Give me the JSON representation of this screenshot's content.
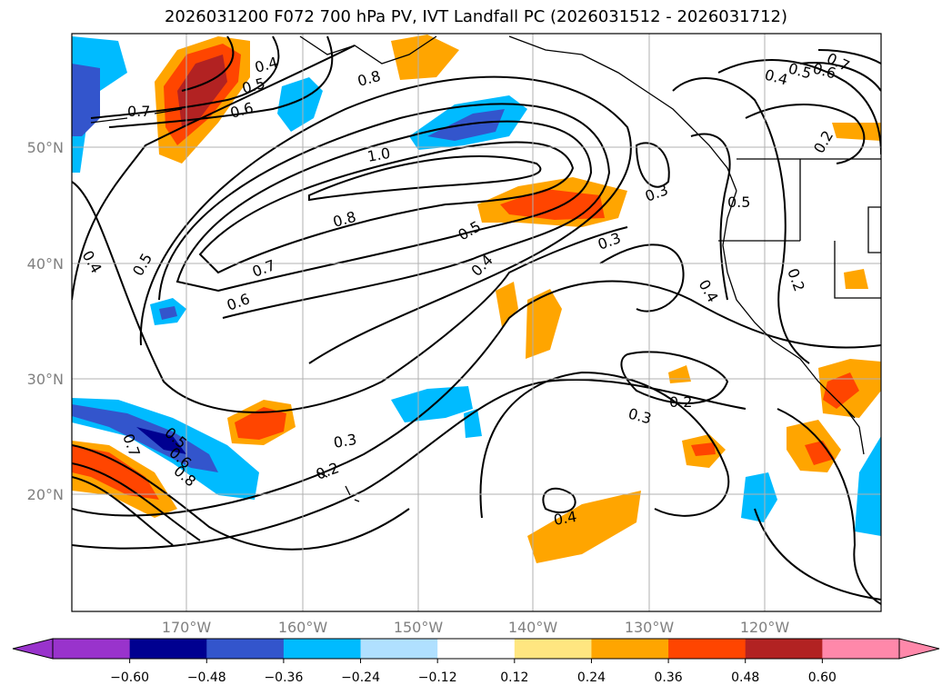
{
  "title": "2026031200 F072 700 hPa PV, IVT Landfall PC (2026031512 - 2026031712)",
  "map": {
    "lat_labels": [
      "50°N",
      "40°N",
      "30°N",
      "20°N"
    ],
    "lon_labels": [
      "170°W",
      "160°W",
      "150°W",
      "140°W",
      "130°W",
      "120°W"
    ],
    "contour_labels": [
      "0.4",
      "0.5",
      "0.6",
      "0.7",
      "0.8",
      "1.0",
      "0.8",
      "0.7",
      "0.6",
      "0.5",
      "0.4",
      "0.5",
      "0.4",
      "0.3",
      "0.3",
      "0.4",
      "0.5",
      "0.6",
      "0.7",
      "0.2",
      "0.5",
      "0.4",
      "0.2",
      "0.2",
      "0.3",
      "0.3",
      "0.2",
      "0.4",
      "0.5",
      "0.6",
      "0.7",
      "0.8"
    ]
  },
  "colorbar": {
    "ticks": [
      "−0.60",
      "−0.48",
      "−0.36",
      "−0.24",
      "−0.12",
      "0.12",
      "0.24",
      "0.36",
      "0.48",
      "0.60"
    ],
    "colors": [
      "#9933cc",
      "#000090",
      "#3355cc",
      "#00bbff",
      "#b0e0ff",
      "#ffffff",
      "#ffe680",
      "#ffa500",
      "#ff4500",
      "#b22222",
      "#ff88aa"
    ]
  }
}
